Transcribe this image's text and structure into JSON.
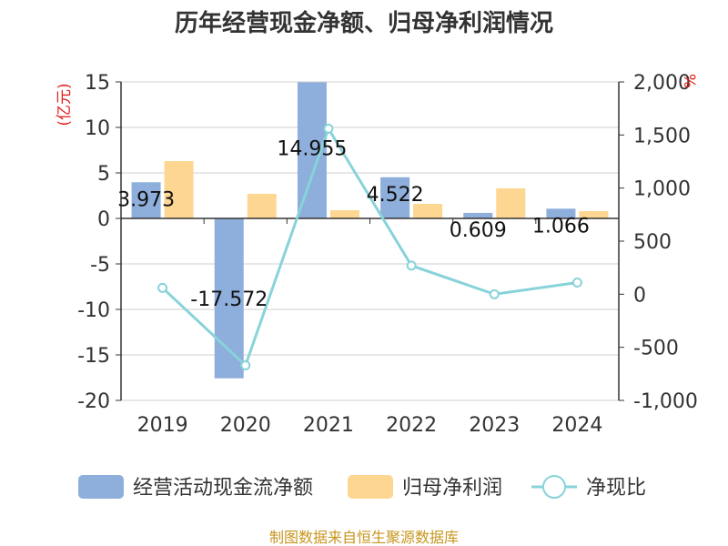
{
  "chart_data": {
    "type": "bar",
    "title": "历年经营现金净额、归母净利润情况",
    "categories": [
      "2019",
      "2020",
      "2021",
      "2022",
      "2023",
      "2024"
    ],
    "series": [
      {
        "name": "经营活动现金流净额",
        "kind": "bar",
        "axis": "left",
        "color": "#8eaedb",
        "values": [
          3.973,
          -17.572,
          14.955,
          4.522,
          0.609,
          1.066
        ]
      },
      {
        "name": "归母净利润",
        "kind": "bar",
        "axis": "left",
        "color": "#fdd692",
        "values": [
          6.3,
          2.7,
          0.9,
          1.6,
          3.3,
          0.8
        ]
      },
      {
        "name": "净现比",
        "kind": "line",
        "axis": "right",
        "color": "#88d3d9",
        "values": [
          60,
          -670,
          1560,
          270,
          0,
          110
        ]
      }
    ],
    "data_labels": [
      "3.973",
      "-17.572",
      "14.955",
      "4.522",
      "0.609",
      "1.066"
    ],
    "y_left": {
      "unit": "(亿元)",
      "ylim": [
        -20,
        15
      ],
      "ticks": [
        15,
        10,
        5,
        0,
        -5,
        -10,
        -15,
        -20
      ],
      "tick_labels": [
        "15",
        "10",
        "5",
        "0",
        "-5",
        "-10",
        "-15",
        "-20"
      ]
    },
    "y_right": {
      "unit": "%",
      "ylim": [
        -1000,
        2000
      ],
      "ticks": [
        2000,
        1500,
        1000,
        500,
        0,
        -500,
        -1000
      ],
      "tick_labels": [
        "2,000",
        "1,500",
        "1,000",
        "500",
        "0",
        "-500",
        "-1,000"
      ]
    },
    "grid": true,
    "legend_position": "bottom"
  },
  "footer": {
    "source": "制图数据来自恒生聚源数据库"
  }
}
